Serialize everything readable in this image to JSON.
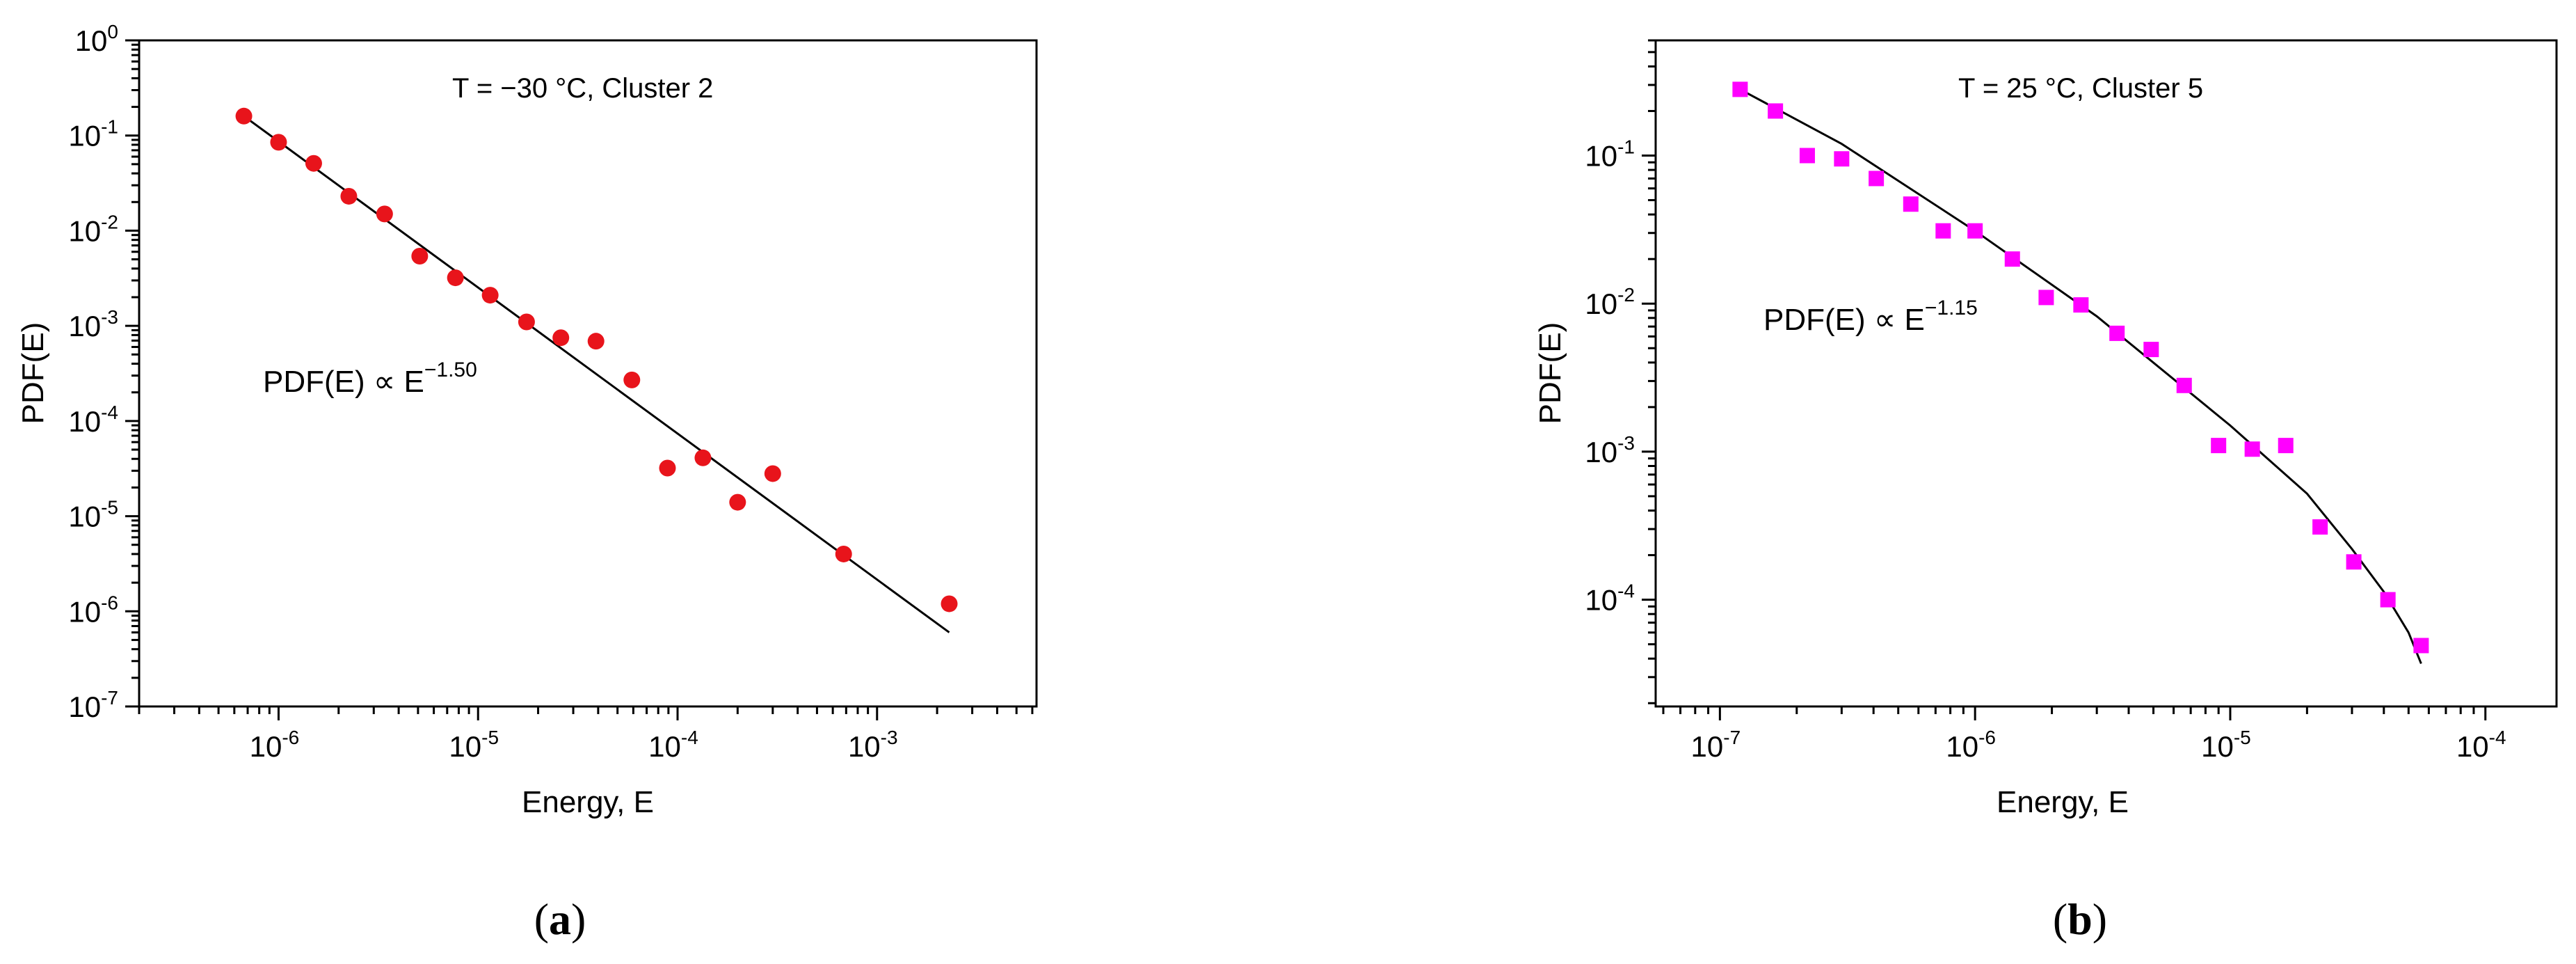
{
  "figure": {
    "captions": [
      {
        "open": "(",
        "letter": "a",
        "close": ")"
      },
      {
        "open": "(",
        "letter": "b",
        "close": ")"
      }
    ]
  },
  "chart_data": [
    {
      "type": "scatter",
      "panel": "a",
      "annotation": "T = −30 °C, Cluster 2",
      "equation": {
        "text": "PDF(E) ∝ E",
        "exponent": "−1.50"
      },
      "xlabel": "Energy, E",
      "ylabel": "PDF(E)",
      "x_scale": "log",
      "y_scale": "log",
      "xlim": [
        2e-07,
        0.0063
      ],
      "ylim": [
        1e-07,
        1
      ],
      "x_ticks": [
        {
          "base": "10",
          "exp": "-6",
          "value": 1e-06
        },
        {
          "base": "10",
          "exp": "-5",
          "value": 1e-05
        },
        {
          "base": "10",
          "exp": "-4",
          "value": 0.0001
        },
        {
          "base": "10",
          "exp": "-3",
          "value": 0.001
        }
      ],
      "y_ticks": [
        {
          "base": "10",
          "exp": "0",
          "value": 1
        },
        {
          "base": "10",
          "exp": "-1",
          "value": 0.1
        },
        {
          "base": "10",
          "exp": "-2",
          "value": 0.01
        },
        {
          "base": "10",
          "exp": "-3",
          "value": 0.001
        },
        {
          "base": "10",
          "exp": "-4",
          "value": 0.0001
        },
        {
          "base": "10",
          "exp": "-5",
          "value": 1e-05
        },
        {
          "base": "10",
          "exp": "-6",
          "value": 1e-06
        },
        {
          "base": "10",
          "exp": "-7",
          "value": 1e-07
        }
      ],
      "marker": "circle",
      "marker_color": "#e8141b",
      "series": [
        {
          "x": [
            6.7e-07,
            1e-06,
            1.5e-06,
            2.25e-06,
            3.4e-06,
            5.1e-06,
            7.7e-06,
            1.15e-05,
            1.75e-05,
            2.6e-05,
            3.9e-05,
            5.9e-05,
            8.9e-05,
            0.000134,
            0.0002,
            0.0003,
            0.00068,
            0.0023
          ],
          "y": [
            0.16,
            0.085,
            0.051,
            0.023,
            0.015,
            0.0054,
            0.0032,
            0.0021,
            0.0011,
            0.00075,
            0.00069,
            0.00027,
            3.2e-05,
            4.1e-05,
            1.4e-05,
            2.8e-05,
            4e-06,
            1.2e-06
          ]
        }
      ],
      "fit": {
        "exponent": -1.5,
        "x": [
          6.7e-07,
          0.0023
        ],
        "y": [
          0.16,
          6e-07
        ]
      }
    },
    {
      "type": "scatter",
      "panel": "b",
      "annotation": "T = 25 °C, Cluster 5",
      "equation": {
        "text": "PDF(E) ∝ E",
        "exponent": "−1.15"
      },
      "xlabel": "Energy, E",
      "ylabel": "PDF(E)",
      "x_scale": "log",
      "y_scale": "log",
      "xlim": [
        5.6e-08,
        0.00019
      ],
      "ylim": [
        1.9e-05,
        0.6
      ],
      "x_ticks": [
        {
          "base": "10",
          "exp": "-7",
          "value": 1e-07
        },
        {
          "base": "10",
          "exp": "-6",
          "value": 1e-06
        },
        {
          "base": "10",
          "exp": "-5",
          "value": 1e-05
        },
        {
          "base": "10",
          "exp": "-4",
          "value": 0.0001
        }
      ],
      "y_ticks": [
        {
          "base": "10",
          "exp": "-1",
          "value": 0.1
        },
        {
          "base": "10",
          "exp": "-2",
          "value": 0.01
        },
        {
          "base": "10",
          "exp": "-3",
          "value": 0.001
        },
        {
          "base": "10",
          "exp": "-4",
          "value": 0.0001
        }
      ],
      "marker": "square",
      "marker_color": "#ff00ff",
      "series": [
        {
          "x": [
            1.2e-07,
            1.65e-07,
            2.2e-07,
            3e-07,
            4.1e-07,
            5.6e-07,
            7.5e-07,
            1e-06,
            1.4e-06,
            1.9e-06,
            2.6e-06,
            3.6e-06,
            4.9e-06,
            6.6e-06,
            9e-06,
            1.22e-05,
            1.65e-05,
            2.25e-05,
            3.05e-05,
            4.15e-05,
            5.6e-05
          ],
          "y": [
            0.28,
            0.2,
            0.1,
            0.095,
            0.07,
            0.047,
            0.031,
            0.031,
            0.02,
            0.011,
            0.0098,
            0.0063,
            0.0049,
            0.0028,
            0.0011,
            0.00104,
            0.0011,
            0.00031,
            0.00018,
            0.0001,
            4.9e-05
          ]
        }
      ],
      "fit": {
        "exponent": -1.15,
        "x": [
          1.2e-07,
          3e-07,
          1e-06,
          3e-06,
          1e-05,
          2e-05,
          3e-05,
          4e-05,
          5e-05,
          5.6e-05
        ],
        "y": [
          0.28,
          0.12,
          0.031,
          0.0082,
          0.0015,
          0.00052,
          0.00022,
          0.000113,
          6e-05,
          3.7e-05
        ]
      }
    }
  ]
}
